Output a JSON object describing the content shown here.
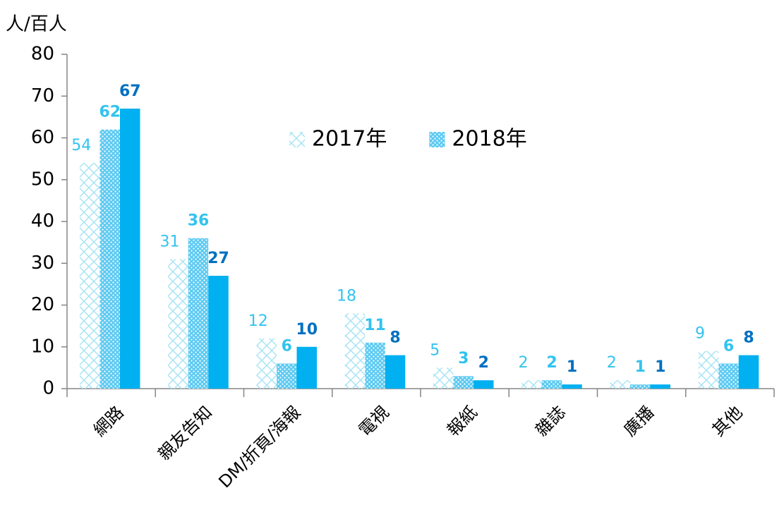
{
  "chart_data": {
    "type": "bar",
    "y_axis_label": "人/百人",
    "categories": [
      "網路",
      "親友告知",
      "DM/折頁/海報",
      "電視",
      "報紙",
      "雜誌",
      "廣播",
      "其他"
    ],
    "series": [
      {
        "name": "2017年",
        "color": "#a8e4f4",
        "pattern": "cross",
        "values": [
          54,
          31,
          12,
          18,
          5,
          2,
          2,
          9
        ]
      },
      {
        "name": "2018年",
        "color": "#5ccaf2",
        "pattern": "dots",
        "values": [
          62,
          36,
          6,
          11,
          3,
          2,
          1,
          6
        ]
      },
      {
        "color": "#00b0f0",
        "values": [
          67,
          27,
          10,
          8,
          2,
          1,
          1,
          8
        ]
      }
    ],
    "ylim": [
      0,
      80
    ],
    "yticks": [
      0,
      10,
      20,
      30,
      40,
      50,
      60,
      70,
      80
    ],
    "legend": "top-center"
  }
}
